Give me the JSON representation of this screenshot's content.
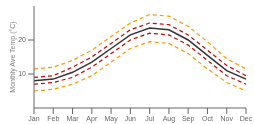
{
  "chart_data": {
    "type": "line",
    "y_label": "Monthly Ave Temp (°C)",
    "categories": [
      "Jan",
      "Feb",
      "Mar",
      "Apr",
      "May",
      "Jun",
      "Jul",
      "Aug",
      "Sep",
      "Oct",
      "Nov",
      "Dec"
    ],
    "series": [
      {
        "color": "#ff9900",
        "line_style": "dashed",
        "values": [
          5.0,
          5.5,
          7.0,
          9.5,
          13.5,
          17.5,
          19.5,
          19.0,
          16.0,
          11.5,
          7.5,
          5.0
        ]
      },
      {
        "color": "#ff9900",
        "line_style": "dashed",
        "values": [
          11.5,
          12.0,
          14.0,
          17.0,
          21.0,
          25.0,
          27.5,
          27.0,
          24.0,
          19.5,
          14.5,
          11.5
        ]
      },
      {
        "color": "#cc0000",
        "line_style": "dashed",
        "values": [
          7.0,
          7.5,
          9.0,
          12.0,
          16.0,
          20.0,
          22.0,
          21.5,
          18.5,
          14.0,
          9.5,
          7.0
        ]
      },
      {
        "color": "#cc0000",
        "line_style": "dashed",
        "values": [
          9.0,
          9.5,
          12.0,
          15.0,
          19.0,
          23.0,
          25.0,
          24.5,
          21.5,
          17.0,
          12.5,
          9.5
        ]
      },
      {
        "color": "#333333",
        "line_style": "solid",
        "values": [
          8.0,
          8.5,
          10.5,
          13.5,
          17.5,
          21.5,
          23.5,
          23.0,
          20.0,
          15.5,
          11.0,
          8.5
        ]
      }
    ],
    "ylim": [
      0,
      30
    ],
    "yticks": [
      10,
      20
    ],
    "grid": false
  }
}
